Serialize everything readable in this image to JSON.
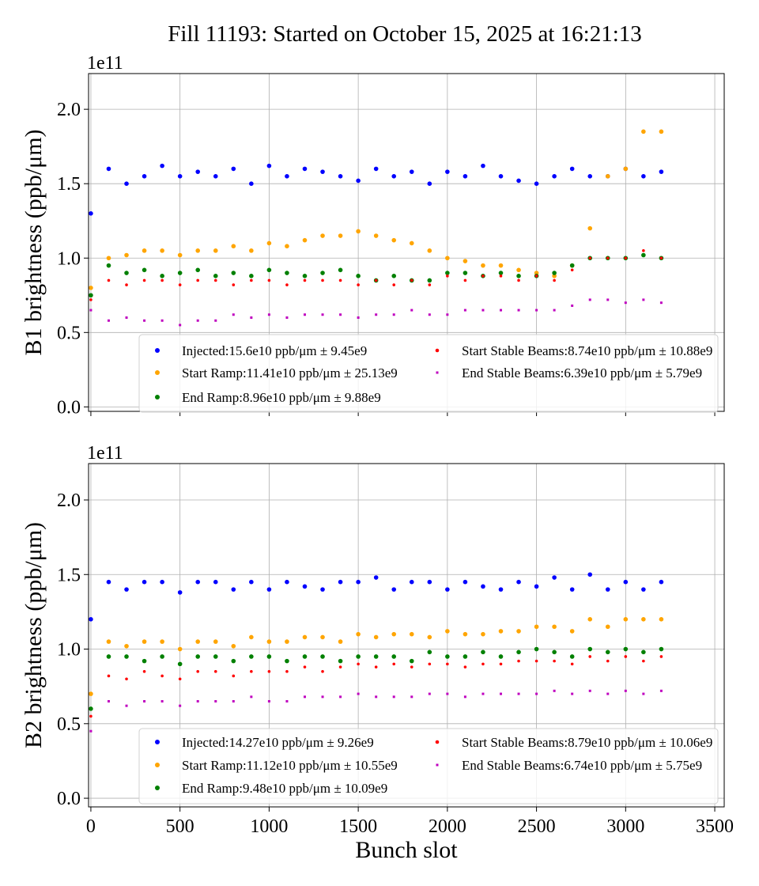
{
  "title": "Fill 11193: Started on October 15, 2025 at 16:21:13",
  "chart_data": [
    {
      "type": "scatter",
      "ylabel": "B1 brightness (ppb/μm)",
      "offset_label": "1e11",
      "xlabel": "",
      "xlim": [
        -13,
        3553
      ],
      "ylim": [
        -0.03,
        2.24
      ],
      "xticks": [
        "0",
        "500",
        "1000",
        "1500",
        "2000",
        "2500",
        "3000",
        "3500"
      ],
      "yticks": [
        "0.0",
        "0.5",
        "1.0",
        "1.5",
        "2.0"
      ],
      "grid": true,
      "legend_placement": "lower center",
      "x": [
        0,
        100,
        200,
        300,
        400,
        500,
        600,
        700,
        800,
        900,
        1000,
        1100,
        1200,
        1300,
        1400,
        1500,
        1600,
        1700,
        1800,
        1900,
        2000,
        2100,
        2200,
        2300,
        2400,
        2500,
        2600,
        2700,
        2800,
        2900,
        3000,
        3100,
        3200
      ],
      "series": [
        {
          "name": "Injected:15.6e10 ppb/μm ± 9.45e9",
          "color": "#0000ff",
          "values": [
            1.3,
            1.6,
            1.5,
            1.55,
            1.62,
            1.55,
            1.58,
            1.55,
            1.6,
            1.5,
            1.62,
            1.55,
            1.6,
            1.58,
            1.55,
            1.52,
            1.6,
            1.55,
            1.58,
            1.5,
            1.58,
            1.55,
            1.62,
            1.55,
            1.52,
            1.5,
            1.55,
            1.6,
            1.55,
            1.55,
            1.6,
            1.55,
            1.58
          ]
        },
        {
          "name": "Start Ramp:11.41e10 ppb/μm ± 25.13e9",
          "color": "#ffa500",
          "values": [
            0.8,
            1.0,
            1.02,
            1.05,
            1.05,
            1.02,
            1.05,
            1.05,
            1.08,
            1.05,
            1.1,
            1.08,
            1.12,
            1.15,
            1.15,
            1.18,
            1.15,
            1.12,
            1.1,
            1.05,
            1.0,
            0.98,
            0.95,
            0.95,
            0.92,
            0.9,
            0.88,
            0.95,
            1.2,
            1.55,
            1.6,
            1.85,
            1.85
          ]
        },
        {
          "name": "End Ramp:8.96e10 ppb/μm ± 9.88e9",
          "color": "#008000",
          "values": [
            0.75,
            0.95,
            0.9,
            0.92,
            0.88,
            0.9,
            0.92,
            0.88,
            0.9,
            0.88,
            0.92,
            0.9,
            0.88,
            0.9,
            0.92,
            0.88,
            0.85,
            0.88,
            0.85,
            0.85,
            0.9,
            0.9,
            0.88,
            0.9,
            0.88,
            0.88,
            0.9,
            0.95,
            1.0,
            1.0,
            1.0,
            1.02,
            1.0
          ]
        },
        {
          "name": "Start Stable Beams:8.74e10 ppb/μm ± 10.88e9",
          "color": "#ff0000",
          "values": [
            0.72,
            0.85,
            0.82,
            0.85,
            0.85,
            0.82,
            0.85,
            0.85,
            0.82,
            0.85,
            0.85,
            0.82,
            0.85,
            0.85,
            0.85,
            0.82,
            0.85,
            0.82,
            0.85,
            0.82,
            0.88,
            0.85,
            0.88,
            0.88,
            0.85,
            0.88,
            0.85,
            0.92,
            1.0,
            1.0,
            1.0,
            1.05,
            1.0
          ]
        },
        {
          "name": "End Stable Beams:6.39e10 ppb/μm ± 5.79e9",
          "color": "#bf00bf",
          "values": [
            0.65,
            0.58,
            0.6,
            0.58,
            0.58,
            0.55,
            0.58,
            0.58,
            0.62,
            0.6,
            0.62,
            0.6,
            0.62,
            0.62,
            0.62,
            0.6,
            0.62,
            0.62,
            0.65,
            0.62,
            0.62,
            0.65,
            0.65,
            0.65,
            0.65,
            0.65,
            0.65,
            0.68,
            0.72,
            0.72,
            0.7,
            0.72,
            0.7
          ]
        }
      ]
    },
    {
      "type": "scatter",
      "ylabel": "B2 brightness (ppb/μm)",
      "offset_label": "1e11",
      "xlabel": "Bunch slot",
      "xlim": [
        -13,
        3553
      ],
      "ylim": [
        -0.058,
        2.244
      ],
      "xticks": [
        "0",
        "500",
        "1000",
        "1500",
        "2000",
        "2500",
        "3000",
        "3500"
      ],
      "yticks": [
        "0.0",
        "0.5",
        "1.0",
        "1.5",
        "2.0"
      ],
      "grid": true,
      "legend_placement": "lower center",
      "x": [
        0,
        100,
        200,
        300,
        400,
        500,
        600,
        700,
        800,
        900,
        1000,
        1100,
        1200,
        1300,
        1400,
        1500,
        1600,
        1700,
        1800,
        1900,
        2000,
        2100,
        2200,
        2300,
        2400,
        2500,
        2600,
        2700,
        2800,
        2900,
        3000,
        3100,
        3200
      ],
      "series": [
        {
          "name": "Injected:14.27e10 ppb/μm ± 9.26e9",
          "color": "#0000ff",
          "values": [
            1.2,
            1.45,
            1.4,
            1.45,
            1.45,
            1.38,
            1.45,
            1.45,
            1.4,
            1.45,
            1.4,
            1.45,
            1.42,
            1.4,
            1.45,
            1.45,
            1.48,
            1.4,
            1.45,
            1.45,
            1.4,
            1.45,
            1.42,
            1.4,
            1.45,
            1.42,
            1.48,
            1.4,
            1.5,
            1.4,
            1.45,
            1.4,
            1.45
          ]
        },
        {
          "name": "Start Ramp:11.12e10 ppb/μm ± 10.55e9",
          "color": "#ffa500",
          "values": [
            0.7,
            1.05,
            1.02,
            1.05,
            1.05,
            1.0,
            1.05,
            1.05,
            1.02,
            1.08,
            1.05,
            1.05,
            1.08,
            1.08,
            1.05,
            1.1,
            1.08,
            1.1,
            1.1,
            1.08,
            1.12,
            1.1,
            1.1,
            1.12,
            1.12,
            1.15,
            1.15,
            1.12,
            1.2,
            1.15,
            1.2,
            1.2,
            1.2
          ]
        },
        {
          "name": "End Ramp:9.48e10 ppb/μm ± 10.09e9",
          "color": "#008000",
          "values": [
            0.6,
            0.95,
            0.95,
            0.92,
            0.95,
            0.9,
            0.95,
            0.95,
            0.92,
            0.95,
            0.95,
            0.92,
            0.95,
            0.95,
            0.92,
            0.95,
            0.95,
            0.95,
            0.92,
            0.98,
            0.95,
            0.95,
            0.98,
            0.95,
            0.98,
            1.0,
            0.98,
            0.95,
            1.0,
            0.98,
            1.0,
            0.98,
            1.0
          ]
        },
        {
          "name": "Start Stable Beams:8.79e10 ppb/μm ± 10.06e9",
          "color": "#ff0000",
          "values": [
            0.55,
            0.82,
            0.8,
            0.85,
            0.82,
            0.8,
            0.85,
            0.85,
            0.82,
            0.85,
            0.85,
            0.85,
            0.88,
            0.85,
            0.88,
            0.9,
            0.88,
            0.9,
            0.88,
            0.9,
            0.9,
            0.88,
            0.9,
            0.9,
            0.92,
            0.92,
            0.92,
            0.9,
            0.95,
            0.92,
            0.95,
            0.92,
            0.95
          ]
        },
        {
          "name": "End Stable Beams:6.74e10 ppb/μm ± 5.75e9",
          "color": "#bf00bf",
          "values": [
            0.45,
            0.65,
            0.62,
            0.65,
            0.65,
            0.62,
            0.65,
            0.65,
            0.65,
            0.68,
            0.65,
            0.65,
            0.68,
            0.68,
            0.68,
            0.7,
            0.68,
            0.68,
            0.68,
            0.7,
            0.7,
            0.68,
            0.7,
            0.7,
            0.7,
            0.7,
            0.72,
            0.7,
            0.72,
            0.7,
            0.72,
            0.7,
            0.72
          ]
        }
      ]
    }
  ]
}
